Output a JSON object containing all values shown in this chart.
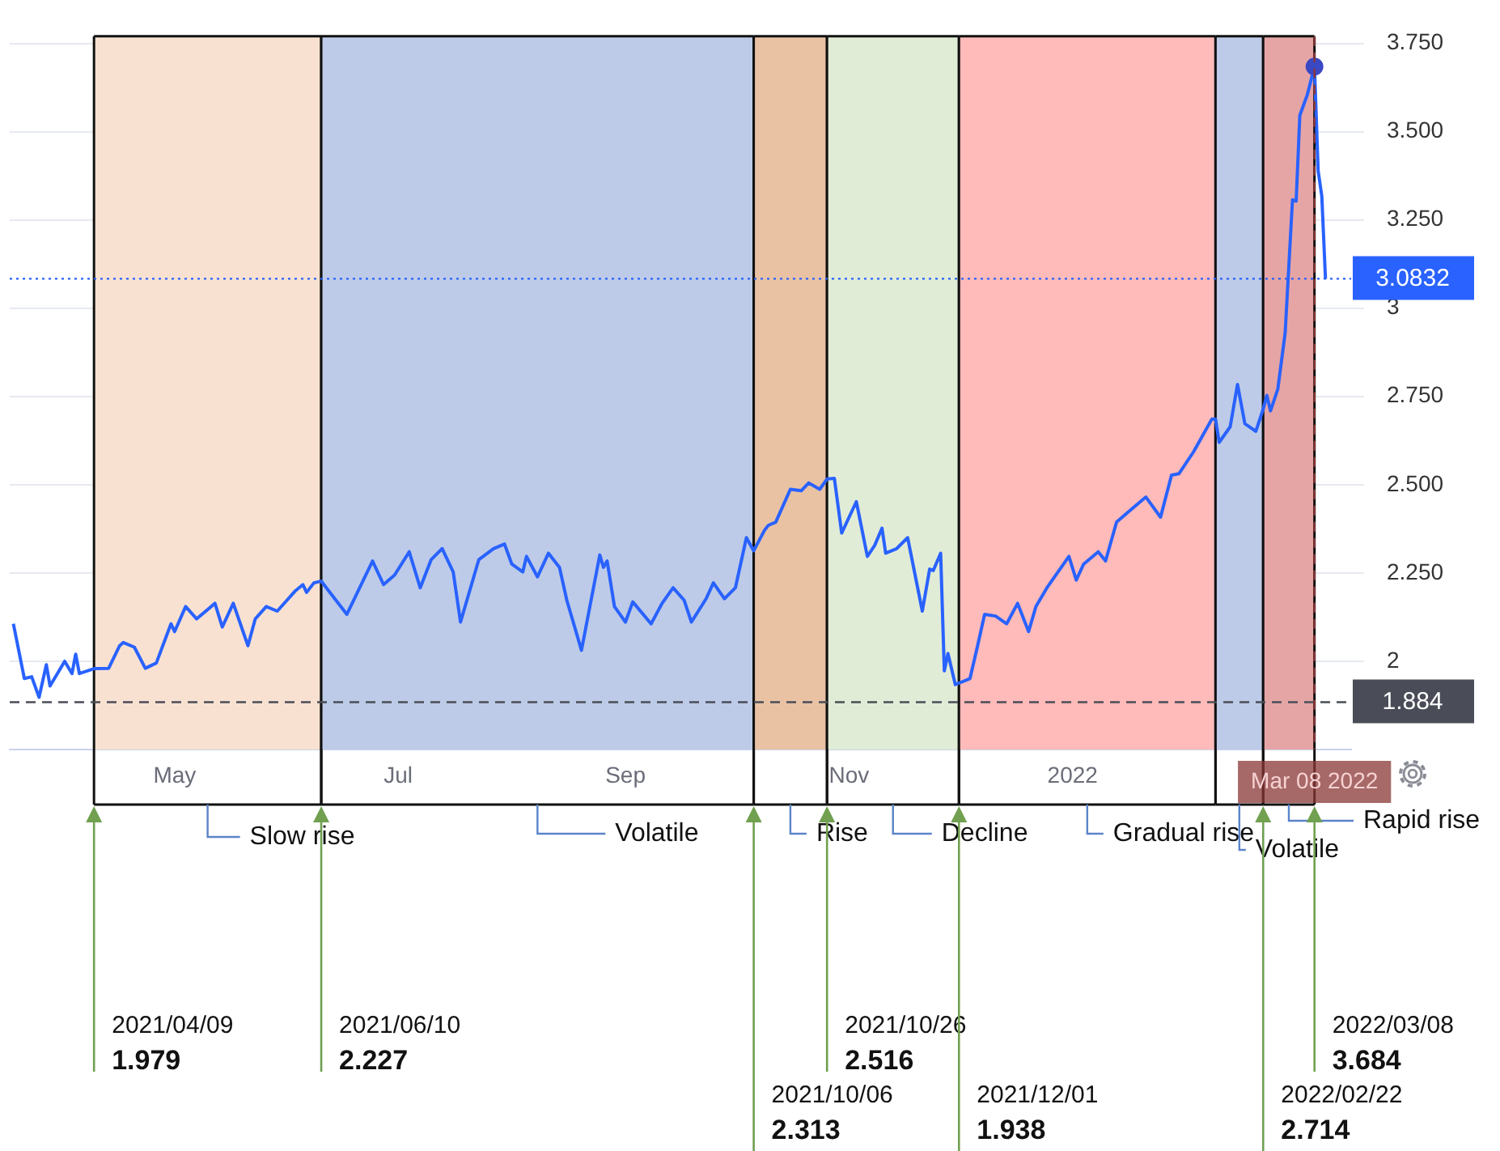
{
  "chart_data": {
    "type": "line",
    "x": [
      "2021-03-18",
      "2021-03-21",
      "2021-03-23",
      "2021-03-25",
      "2021-03-27",
      "2021-03-28",
      "2021-04-01",
      "2021-04-03",
      "2021-04-04",
      "2021-04-05",
      "2021-04-09",
      "2021-04-13",
      "2021-04-16",
      "2021-04-17",
      "2021-04-20",
      "2021-04-23",
      "2021-04-26",
      "2021-04-30",
      "2021-05-01",
      "2021-05-04",
      "2021-05-07",
      "2021-05-12",
      "2021-05-14",
      "2021-05-17",
      "2021-05-21",
      "2021-05-23",
      "2021-05-26",
      "2021-05-29",
      "2021-06-03",
      "2021-06-05",
      "2021-06-06",
      "2021-06-08",
      "2021-06-10",
      "2021-06-14",
      "2021-06-17",
      "2021-06-24",
      "2021-06-27",
      "2021-06-30",
      "2021-07-04",
      "2021-07-07",
      "2021-07-10",
      "2021-07-13",
      "2021-07-16",
      "2021-07-18",
      "2021-07-23",
      "2021-07-27",
      "2021-07-30",
      "2021-08-01",
      "2021-08-04",
      "2021-08-05",
      "2021-08-08",
      "2021-08-11",
      "2021-08-14",
      "2021-08-16",
      "2021-08-20",
      "2021-08-25",
      "2021-08-26",
      "2021-08-27",
      "2021-08-29",
      "2021-09-01",
      "2021-09-03",
      "2021-09-08",
      "2021-09-11",
      "2021-09-14",
      "2021-09-17",
      "2021-09-19",
      "2021-09-23",
      "2021-09-25",
      "2021-09-28",
      "2021-10-01",
      "2021-10-04",
      "2021-10-06",
      "2021-10-09",
      "2021-10-10",
      "2021-10-12",
      "2021-10-16",
      "2021-10-19",
      "2021-10-21",
      "2021-10-24",
      "2021-10-26",
      "2021-10-28",
      "2021-10-30",
      "2021-11-03",
      "2021-11-06",
      "2021-11-08",
      "2021-11-10",
      "2021-11-11",
      "2021-11-14",
      "2021-11-17",
      "2021-11-21",
      "2021-11-23",
      "2021-11-24",
      "2021-11-26",
      "2021-11-27",
      "2021-11-28",
      "2021-11-30",
      "2021-12-01",
      "2021-12-04",
      "2021-12-06",
      "2021-12-08",
      "2021-12-11",
      "2021-12-14",
      "2021-12-17",
      "2021-12-20",
      "2021-12-22",
      "2021-12-25",
      "2021-12-31",
      "2022-01-02",
      "2022-01-04",
      "2022-01-08",
      "2022-01-10",
      "2022-01-13",
      "2022-01-16",
      "2022-01-21",
      "2022-01-25",
      "2022-01-28",
      "2022-01-30",
      "2022-02-03",
      "2022-02-08",
      "2022-02-09",
      "2022-02-10",
      "2022-02-13",
      "2022-02-15",
      "2022-02-17",
      "2022-02-20",
      "2022-02-22",
      "2022-02-23",
      "2022-02-24",
      "2022-02-26",
      "2022-02-28",
      "2022-03-02",
      "2022-03-03",
      "2022-03-04",
      "2022-03-06",
      "2022-03-08",
      "2022-03-09",
      "2022-03-10",
      "2022-03-11"
    ],
    "series": [
      {
        "color": "#2962ff",
        "values": [
          2.106,
          1.951,
          1.956,
          1.898,
          1.99,
          1.93,
          2.0,
          1.965,
          2.02,
          1.965,
          1.979,
          1.98,
          2.044,
          2.053,
          2.04,
          1.98,
          1.995,
          2.106,
          2.084,
          2.155,
          2.12,
          2.164,
          2.097,
          2.164,
          2.044,
          2.12,
          2.155,
          2.142,
          2.2,
          2.217,
          2.195,
          2.222,
          2.227,
          2.173,
          2.133,
          2.284,
          2.217,
          2.244,
          2.31,
          2.208,
          2.288,
          2.319,
          2.253,
          2.111,
          2.288,
          2.319,
          2.332,
          2.275,
          2.253,
          2.297,
          2.239,
          2.306,
          2.266,
          2.173,
          2.031,
          2.301,
          2.266,
          2.284,
          2.155,
          2.111,
          2.168,
          2.106,
          2.164,
          2.208,
          2.173,
          2.111,
          2.177,
          2.222,
          2.177,
          2.208,
          2.35,
          2.313,
          2.372,
          2.385,
          2.394,
          2.487,
          2.483,
          2.505,
          2.487,
          2.516,
          2.518,
          2.363,
          2.452,
          2.297,
          2.328,
          2.377,
          2.306,
          2.319,
          2.35,
          2.142,
          2.261,
          2.257,
          2.306,
          1.973,
          2.022,
          1.934,
          1.938,
          1.951,
          2.04,
          2.133,
          2.128,
          2.106,
          2.164,
          2.084,
          2.155,
          2.208,
          2.297,
          2.23,
          2.275,
          2.31,
          2.284,
          2.394,
          2.421,
          2.465,
          2.408,
          2.527,
          2.531,
          2.593,
          2.686,
          2.686,
          2.62,
          2.664,
          2.784,
          2.673,
          2.651,
          2.714,
          2.753,
          2.709,
          2.771,
          2.93,
          3.307,
          3.303,
          3.546,
          3.603,
          3.684,
          3.389,
          3.317,
          3.083
        ]
      },
      {
        "type": "scatter",
        "x": [
          "2022-03-08"
        ],
        "values": [
          3.684
        ],
        "color": "#3b48c4",
        "marker": "circle"
      }
    ],
    "xlim": [
      "2021-03-17",
      "2022-03-18"
    ],
    "xticks": [
      {
        "value": "2021-05-01",
        "label": "May"
      },
      {
        "value": "2021-07-01",
        "label": "Jul"
      },
      {
        "value": "2021-09-01",
        "label": "Sep"
      },
      {
        "value": "2021-11-01",
        "label": "Nov"
      },
      {
        "value": "2022-01-01",
        "label": "2022"
      }
    ],
    "ylim": [
      1.75,
      3.77
    ],
    "yticks": [
      {
        "value": 2,
        "label": "2"
      },
      {
        "value": 2.25,
        "label": "2.250"
      },
      {
        "value": 2.5,
        "label": "2.500"
      },
      {
        "value": 2.75,
        "label": "2.750"
      },
      {
        "value": 3,
        "label": "3"
      },
      {
        "value": 3.25,
        "label": "3.250"
      },
      {
        "value": 3.5,
        "label": "3.500"
      },
      {
        "value": 3.75,
        "label": "3.750"
      }
    ],
    "grid": true,
    "legend": false,
    "marker": "none",
    "bands": [
      {
        "axis": "x",
        "from": "2021-04-09",
        "to": "2021-06-10",
        "label": "Slow rise",
        "color": "#f9e1d2"
      },
      {
        "axis": "x",
        "from": "2021-06-10",
        "to": "2021-10-06",
        "label": "Volatile",
        "color": "#bdcbe8"
      },
      {
        "axis": "x",
        "from": "2021-10-06",
        "to": "2021-10-26",
        "label": "Rise",
        "color": "#e9c2a4"
      },
      {
        "axis": "x",
        "from": "2021-10-26",
        "to": "2021-12-01",
        "label": "Decline",
        "color": "#e1ecd7"
      },
      {
        "axis": "x",
        "from": "2021-12-01",
        "to": "2022-02-09",
        "label": "Gradual rise",
        "color": "#ffbaba"
      },
      {
        "axis": "x",
        "from": "2022-02-09",
        "to": "2022-02-22",
        "label": "Volatile",
        "color": "#bdcbe8"
      },
      {
        "axis": "x",
        "from": "2022-02-22",
        "to": "2022-03-08",
        "label": "Rapid rise",
        "color": "#e6a5a5"
      }
    ],
    "ref_lines": [
      {
        "axis": "y",
        "value": 1.884,
        "label": "1.884",
        "color": "#4a4d57",
        "line_style": "dashed"
      },
      {
        "axis": "y",
        "value": 3.0832,
        "label": "3.0832",
        "color": "#2962ff",
        "line_style": "dotted"
      },
      {
        "axis": "x",
        "value": "2022-03-08",
        "label": "Mar 08 2022",
        "color": "#8a3535",
        "line_style": "dashed"
      }
    ],
    "annotations": [
      "2021/04/09\n1.979",
      "2021/06/10\n2.227",
      "2021/10/06\n2.313",
      "2021/10/26\n2.516",
      "2021/12/01\n1.938",
      "2022/02/22\n2.714",
      "2022/03/08\n3.684"
    ]
  }
}
